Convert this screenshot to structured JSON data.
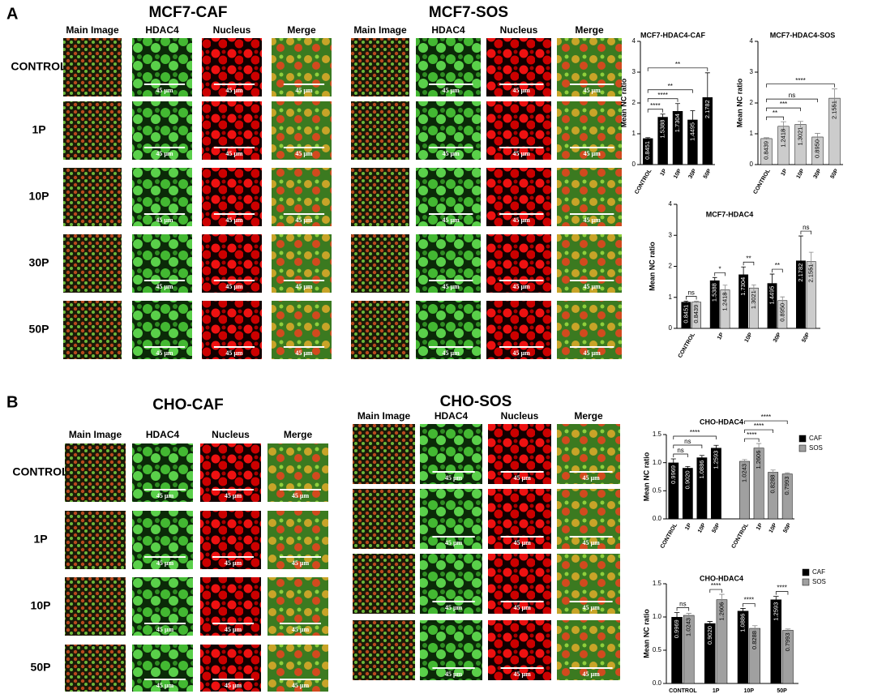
{
  "panels": [
    {
      "label": "A",
      "groups": [
        {
          "title": "MCF7-CAF"
        },
        {
          "title": "MCF7-SOS"
        }
      ],
      "columns": [
        "Main Image",
        "HDAC4",
        "Nucleus",
        "Merge"
      ],
      "rows": [
        "CONTROL",
        "1P",
        "10P",
        "30P",
        "50P"
      ]
    },
    {
      "label": "B",
      "groups": [
        {
          "title": "CHO-CAF"
        },
        {
          "title": "CHO-SOS"
        }
      ],
      "columns": [
        "Main Image",
        "HDAC4",
        "Nucleus",
        "Merge"
      ],
      "rows": [
        "CONTROL",
        "1P",
        "10P",
        "50P"
      ]
    }
  ],
  "scale_bar_label": "45 µm",
  "chart_data": [
    {
      "type": "bar",
      "title": "MCF7-HDAC4-CAF",
      "y_label": "Mean NC ratio",
      "categories": [
        "CONTROL",
        "1P",
        "10P",
        "30P",
        "50P"
      ],
      "values": [
        0.8451,
        1.5388,
        1.7304,
        1.4495,
        2.1782
      ],
      "value_labels": [
        "0.8451",
        "1.5388",
        "1.7304",
        "1.4495",
        "2.1782"
      ],
      "errors": [
        0.03,
        0.1,
        0.25,
        0.3,
        0.8
      ],
      "color": "#000000",
      "ylim": [
        0,
        4
      ],
      "yticks": [
        0,
        1,
        2,
        3,
        4
      ],
      "significance": [
        {
          "label": "****",
          "from": [
            0,
            0
          ],
          "to": [
            0,
            1
          ]
        },
        {
          "label": "****",
          "from": [
            0,
            0
          ],
          "to": [
            0,
            2
          ]
        },
        {
          "label": "**",
          "from": [
            0,
            0
          ],
          "to": [
            0,
            3
          ]
        },
        {
          "label": "**",
          "from": [
            0,
            0
          ],
          "to": [
            0,
            4
          ]
        }
      ]
    },
    {
      "type": "bar",
      "title": "MCF7-HDAC4-SOS",
      "y_label": "Mean NC ratio",
      "categories": [
        "CONTROL",
        "1P",
        "10P",
        "30P",
        "50P"
      ],
      "values": [
        0.8439,
        1.2418,
        1.3021,
        0.895,
        2.1551
      ],
      "value_labels": [
        "0.8439",
        "1.2418",
        "1.3021",
        "0.8950",
        "2.1551"
      ],
      "errors": [
        0.03,
        0.15,
        0.1,
        0.12,
        0.3
      ],
      "color": "#cccccc",
      "ylim": [
        0,
        4
      ],
      "yticks": [
        0,
        1,
        2,
        3,
        4
      ],
      "significance": [
        {
          "label": "**",
          "from": [
            0,
            0
          ],
          "to": [
            0,
            1
          ]
        },
        {
          "label": "***",
          "from": [
            0,
            0
          ],
          "to": [
            0,
            2
          ]
        },
        {
          "label": "ns",
          "from": [
            0,
            0
          ],
          "to": [
            0,
            3
          ]
        },
        {
          "label": "****",
          "from": [
            0,
            0
          ],
          "to": [
            0,
            4
          ]
        }
      ]
    },
    {
      "type": "bar",
      "title": "MCF7-HDAC4",
      "y_label": "Mean NC ratio",
      "categories": [
        "CONTROL",
        "1P",
        "10P",
        "30P",
        "50P"
      ],
      "grouping": "grouped",
      "series": [
        {
          "color": "#000000",
          "values": [
            0.8451,
            1.5388,
            1.7304,
            1.4495,
            2.1782
          ],
          "value_labels": [
            "0.8451",
            "1.5388",
            "1.7304",
            "1.4495",
            "2.1782"
          ],
          "errors": [
            0.03,
            0.1,
            0.25,
            0.3,
            0.8
          ]
        },
        {
          "color": "#cccccc",
          "values": [
            0.8439,
            1.2418,
            1.3021,
            0.895,
            2.1551
          ],
          "value_labels": [
            "0.8439",
            "1.2418",
            "1.3021",
            "0.8950",
            "2.1551"
          ],
          "errors": [
            0.03,
            0.15,
            0.1,
            0.12,
            0.3
          ]
        }
      ],
      "ylim": [
        0,
        4
      ],
      "yticks": [
        0,
        1,
        2,
        3,
        4
      ],
      "significance": [
        {
          "label": "ns",
          "from": [
            0,
            0
          ],
          "to": [
            1,
            0
          ]
        },
        {
          "label": "*",
          "from": [
            0,
            1
          ],
          "to": [
            1,
            1
          ]
        },
        {
          "label": "**",
          "from": [
            0,
            2
          ],
          "to": [
            1,
            2
          ]
        },
        {
          "label": "**",
          "from": [
            0,
            3
          ],
          "to": [
            1,
            3
          ]
        },
        {
          "label": "ns",
          "from": [
            0,
            4
          ],
          "to": [
            1,
            4
          ]
        }
      ]
    },
    {
      "type": "bar",
      "title": "CHO-HDAC4",
      "y_label": "Mean NC ratio",
      "categories": [
        "CONTROL",
        "1P",
        "10P",
        "50P"
      ],
      "grouping": "separate",
      "legend": true,
      "series": [
        {
          "name": "CAF",
          "color": "#000000",
          "values": [
            0.9969,
            0.902,
            1.0886,
            1.2593
          ],
          "value_labels": [
            "0.9969",
            "0.9020",
            "1.0886",
            "1.2593"
          ],
          "errors": [
            0.07,
            0.03,
            0.04,
            0.05
          ]
        },
        {
          "name": "SOS",
          "color": "#a0a0a0",
          "values": [
            1.0243,
            1.2606,
            0.8288,
            0.7993
          ],
          "value_labels": [
            "1.0243",
            "1.2606",
            "0.8288",
            "0.7993"
          ],
          "errors": [
            0.03,
            0.08,
            0.04,
            0.02
          ]
        }
      ],
      "ylim": [
        0,
        1.5
      ],
      "yticks": [
        {
          "value": 0,
          "label": "0.0"
        },
        0.5,
        {
          "value": 1,
          "label": "1.0"
        },
        1.5
      ],
      "significance": [
        {
          "label": "ns",
          "from": [
            0,
            0
          ],
          "to": [
            0,
            1
          ]
        },
        {
          "label": "ns",
          "from": [
            0,
            0
          ],
          "to": [
            0,
            2
          ]
        },
        {
          "label": "****",
          "from": [
            0,
            0
          ],
          "to": [
            0,
            3
          ]
        },
        {
          "label": "****",
          "from": [
            1,
            0
          ],
          "to": [
            1,
            1
          ]
        },
        {
          "label": "****",
          "from": [
            1,
            0
          ],
          "to": [
            1,
            2
          ]
        },
        {
          "label": "****",
          "from": [
            1,
            0
          ],
          "to": [
            1,
            3
          ]
        }
      ]
    },
    {
      "type": "bar",
      "title": "CHO-HDAC4",
      "y_label": "Mean NC ratio",
      "categories": [
        "CONTROL",
        "1P",
        "10P",
        "50P"
      ],
      "grouping": "grouped",
      "legend": true,
      "series": [
        {
          "name": "CAF",
          "color": "#000000",
          "values": [
            0.9969,
            0.902,
            1.0886,
            1.2593
          ],
          "value_labels": [
            "0.9969",
            "0.9020",
            "1.0886",
            "1.2593"
          ],
          "errors": [
            0.07,
            0.03,
            0.04,
            0.05
          ]
        },
        {
          "name": "SOS",
          "color": "#a0a0a0",
          "values": [
            1.0243,
            1.2606,
            0.8288,
            0.7993
          ],
          "value_labels": [
            "1.0243",
            "1.2606",
            "0.8288",
            "0.7993"
          ],
          "errors": [
            0.03,
            0.08,
            0.04,
            0.02
          ]
        }
      ],
      "ylim": [
        0,
        1.5
      ],
      "yticks": [
        {
          "value": 0,
          "label": "0.0"
        },
        0.5,
        {
          "value": 1,
          "label": "1.0"
        },
        1.5
      ],
      "significance": [
        {
          "label": "ns",
          "from": [
            0,
            0
          ],
          "to": [
            1,
            0
          ]
        },
        {
          "label": "****",
          "from": [
            0,
            1
          ],
          "to": [
            1,
            1
          ]
        },
        {
          "label": "****",
          "from": [
            0,
            2
          ],
          "to": [
            1,
            2
          ]
        },
        {
          "label": "****",
          "from": [
            0,
            3
          ],
          "to": [
            1,
            3
          ]
        }
      ]
    }
  ]
}
